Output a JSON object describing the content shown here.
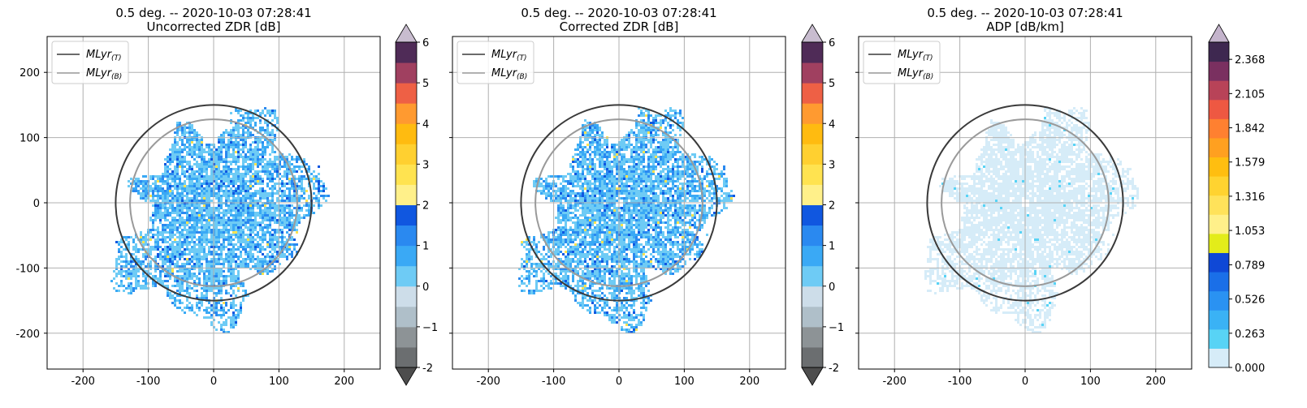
{
  "chart_data": [
    {
      "type": "heatmap",
      "title": "0.5 deg. -- 2020-10-03 07:28:41",
      "subtitle": "Uncorrected ZDR [dB]",
      "xlabel": "",
      "ylabel": "",
      "xlim": [
        -255,
        255
      ],
      "ylim": [
        -255,
        255
      ],
      "xticks": [
        -200,
        -100,
        0,
        100,
        200
      ],
      "yticks": [
        200,
        100,
        0,
        -100,
        -200
      ],
      "grid": true,
      "legend_position": "top-left",
      "legend": [
        "MLyr",
        "MLyr"
      ],
      "legend_subscripts": [
        "(T)",
        "(B)"
      ],
      "rings": [
        {
          "name": "MLyr(T)",
          "radius_km": 150,
          "color": "#3a3a3a"
        },
        {
          "name": "MLyr(B)",
          "radius_km": 128,
          "color": "#9a9a9a"
        }
      ],
      "colorbar": {
        "min": -2,
        "max": 6,
        "extend": "both",
        "ticks": [
          "-2",
          "−1",
          "0",
          "1",
          "2",
          "3",
          "4",
          "5",
          "6"
        ],
        "tick_values": [
          -2,
          -1,
          0,
          1,
          2,
          3,
          4,
          5,
          6
        ],
        "colors": [
          "#6b6e70",
          "#8d9396",
          "#afbfc9",
          "#cddde9",
          "#6ecbf5",
          "#3aa9f5",
          "#2a89f0",
          "#1057e0",
          "#fff08a",
          "#ffe350",
          "#ffd030",
          "#ffbb10",
          "#ff9a30",
          "#ee6045",
          "#a04060",
          "#4f2b57"
        ]
      }
    },
    {
      "type": "heatmap",
      "title": "0.5 deg. -- 2020-10-03 07:28:41",
      "subtitle": "Corrected ZDR [dB]",
      "xlabel": "",
      "ylabel": "",
      "xlim": [
        -255,
        255
      ],
      "ylim": [
        -255,
        255
      ],
      "xticks": [
        -200,
        -100,
        0,
        100,
        200
      ],
      "yticks": [],
      "grid": true,
      "legend_position": "top-left",
      "legend": [
        "MLyr",
        "MLyr"
      ],
      "legend_subscripts": [
        "(T)",
        "(B)"
      ],
      "rings": [
        {
          "name": "MLyr(T)",
          "radius_km": 150,
          "color": "#3a3a3a"
        },
        {
          "name": "MLyr(B)",
          "radius_km": 128,
          "color": "#9a9a9a"
        }
      ],
      "colorbar": {
        "min": -2,
        "max": 6,
        "extend": "both",
        "ticks": [
          "-2",
          "−1",
          "0",
          "1",
          "2",
          "3",
          "4",
          "5",
          "6"
        ],
        "tick_values": [
          -2,
          -1,
          0,
          1,
          2,
          3,
          4,
          5,
          6
        ],
        "colors": [
          "#6b6e70",
          "#8d9396",
          "#afbfc9",
          "#cddde9",
          "#6ecbf5",
          "#3aa9f5",
          "#2a89f0",
          "#1057e0",
          "#fff08a",
          "#ffe350",
          "#ffd030",
          "#ffbb10",
          "#ff9a30",
          "#ee6045",
          "#a04060",
          "#4f2b57"
        ]
      }
    },
    {
      "type": "heatmap",
      "title": "0.5 deg. -- 2020-10-03 07:28:41",
      "subtitle": "ADP [dB/km]",
      "xlabel": "",
      "ylabel": "",
      "xlim": [
        -255,
        255
      ],
      "ylim": [
        -255,
        255
      ],
      "xticks": [
        -200,
        -100,
        0,
        100,
        200
      ],
      "yticks": [],
      "grid": true,
      "legend_position": "top-left",
      "legend": [
        "MLyr",
        "MLyr"
      ],
      "legend_subscripts": [
        "(T)",
        "(B)"
      ],
      "rings": [
        {
          "name": "MLyr(T)",
          "radius_km": 150,
          "color": "#3a3a3a"
        },
        {
          "name": "MLyr(B)",
          "radius_km": 128,
          "color": "#9a9a9a"
        }
      ],
      "colorbar": {
        "min": 0,
        "max": 2.5,
        "extend": "max",
        "ticks": [
          "0.000",
          "0.263",
          "0.526",
          "0.789",
          "1.053",
          "1.316",
          "1.579",
          "1.842",
          "2.105",
          "2.368"
        ],
        "tick_values": [
          0,
          0.263,
          0.526,
          0.789,
          1.053,
          1.316,
          1.579,
          1.842,
          2.105,
          2.368
        ],
        "colors": [
          "#d6ecf8",
          "#58d3f5",
          "#3ab2f5",
          "#2a92f2",
          "#1a6fe8",
          "#0f48d6",
          "#e3ec1a",
          "#fff08a",
          "#ffe25a",
          "#ffd330",
          "#ffbe10",
          "#ffa020",
          "#ff8030",
          "#ee5842",
          "#b84358",
          "#7a3060",
          "#3e2850"
        ]
      }
    }
  ]
}
